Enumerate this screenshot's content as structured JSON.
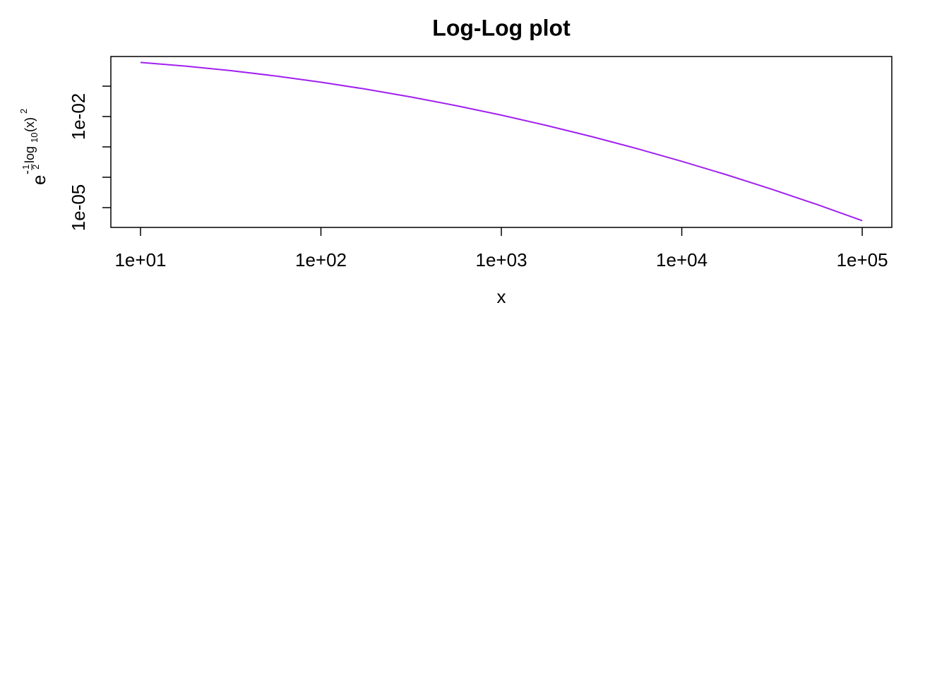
{
  "chart_data": {
    "type": "line",
    "title": "Log-Log plot",
    "xlabel": "x",
    "ylabel": {
      "base": "e",
      "sign": "-",
      "num": "1",
      "den": "2",
      "func": "log",
      "sub": "10",
      "arg": "(x)",
      "power": "2"
    },
    "xlog": true,
    "ylog": true,
    "x": [
      10,
      17.78,
      31.62,
      56.23,
      100,
      177.8,
      316.2,
      562.3,
      1000,
      1778,
      3162,
      5623,
      10000,
      17783,
      31623,
      56234,
      100000
    ],
    "series": [
      {
        "color": "#a020f0",
        "values": [
          0.6065,
          0.4578,
          0.3247,
          0.2163,
          0.1353,
          0.0796,
          0.0439,
          0.02279,
          0.01111,
          0.005088,
          0.002187,
          0.000884,
          0.000335,
          0.0001197,
          4.01e-05,
          1.264e-05,
          3.73e-06
        ]
      }
    ],
    "xlim": [
      6.85,
      145900
    ],
    "ylim": [
      2.23e-06,
      0.948
    ],
    "xticks": [
      {
        "value": 10,
        "label": "1e+01"
      },
      {
        "value": 100,
        "label": "1e+02"
      },
      {
        "value": 1000,
        "label": "1e+03"
      },
      {
        "value": 10000,
        "label": "1e+04"
      },
      {
        "value": 100000,
        "label": "1e+05"
      }
    ],
    "yticks": [
      {
        "value": 0.01,
        "label": "1e-02"
      },
      {
        "value": 1e-05,
        "label": "1e-05"
      }
    ],
    "yticks_unlabeled": [
      0.1,
      0.001,
      0.0001
    ]
  }
}
